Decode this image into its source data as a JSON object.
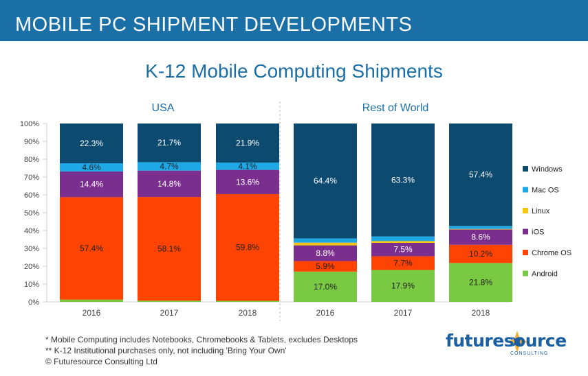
{
  "header": {
    "title": "MOBILE PC SHIPMENT DEVELOPMENTS"
  },
  "chart_data": {
    "type": "bar",
    "stacked": true,
    "title": "K-12 Mobile Computing Shipments",
    "groups": [
      {
        "name": "USA",
        "categories": [
          "2016",
          "2017",
          "2018"
        ]
      },
      {
        "name": "Rest of World",
        "categories": [
          "2016",
          "2017",
          "2018"
        ]
      }
    ],
    "y_ticks": [
      "0%",
      "10%",
      "20%",
      "30%",
      "40%",
      "50%",
      "60%",
      "70%",
      "80%",
      "90%",
      "100%"
    ],
    "ylim": [
      0,
      100
    ],
    "legend_position": "right",
    "series": [
      {
        "name": "Android",
        "color": "#7ac943",
        "values": [
          1.3,
          0.7,
          0.6,
          17.0,
          17.9,
          21.8
        ],
        "labels": [
          "",
          "",
          "",
          "17.0%",
          "17.9%",
          "21.8%"
        ]
      },
      {
        "name": "Chrome OS",
        "color": "#fe4302",
        "values": [
          57.4,
          58.1,
          59.8,
          5.9,
          7.7,
          10.2
        ],
        "labels": [
          "57.4%",
          "58.1%",
          "59.8%",
          "5.9%",
          "7.7%",
          "10.2%"
        ]
      },
      {
        "name": "iOS",
        "color": "#7a2f8e",
        "values": [
          14.4,
          14.8,
          13.6,
          8.8,
          7.5,
          8.6
        ],
        "labels": [
          "14.4%",
          "14.8%",
          "13.6%",
          "8.8%",
          "7.5%",
          "8.6%"
        ]
      },
      {
        "name": "Linux",
        "color": "#f7c60b",
        "values": [
          0,
          0,
          0,
          1.5,
          1.0,
          0.3
        ],
        "labels": [
          "",
          "",
          "",
          "",
          "",
          ""
        ]
      },
      {
        "name": "Mac OS",
        "color": "#1ea8e6",
        "values": [
          4.6,
          4.7,
          4.1,
          2.4,
          2.6,
          1.7
        ],
        "labels": [
          "4.6%",
          "4.7%",
          "4.1%",
          "",
          "",
          ""
        ]
      },
      {
        "name": "Windows",
        "color": "#0d4a6f",
        "values": [
          22.3,
          21.7,
          21.9,
          64.4,
          63.3,
          57.4
        ],
        "labels": [
          "22.3%",
          "21.7%",
          "21.9%",
          "64.4%",
          "63.3%",
          "57.4%"
        ]
      }
    ],
    "legend_order": [
      "Windows",
      "Mac OS",
      "Linux",
      "iOS",
      "Chrome OS",
      "Android"
    ]
  },
  "footnotes": [
    "* Mobile Computing includes Notebooks, Chromebooks & Tablets, excludes Desktops",
    "** K-12 Institutional purchases only, not including 'Bring Your Own'",
    "© Futuresource Consulting Ltd"
  ],
  "logo": {
    "name": "futuresource",
    "sub": "CONSULTING"
  }
}
